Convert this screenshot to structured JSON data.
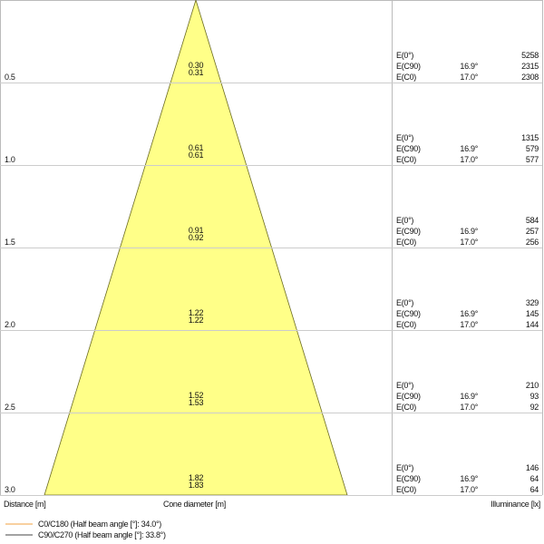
{
  "chart_data": {
    "type": "table",
    "xlabel": "Cone diameter [m]",
    "ylabel": "Distance [m]",
    "right_label": "Illuminance [lx]",
    "colors": {
      "cone_fill": "#ffff88",
      "cone_stroke": "#6b6b20",
      "c0_line": "#f0a040",
      "c90_line": "#444444"
    },
    "rows": [
      {
        "distance": "0.5",
        "diam_c90": "0.30",
        "diam_c0": "0.31",
        "e0": "5258",
        "ec90_angle": "16.9°",
        "ec90": "2315",
        "ec0_angle": "17.0°",
        "ec0": "2308"
      },
      {
        "distance": "1.0",
        "diam_c90": "0.61",
        "diam_c0": "0.61",
        "e0": "1315",
        "ec90_angle": "16.9°",
        "ec90": "579",
        "ec0_angle": "17.0°",
        "ec0": "577"
      },
      {
        "distance": "1.5",
        "diam_c90": "0.91",
        "diam_c0": "0.92",
        "e0": "584",
        "ec90_angle": "16.9°",
        "ec90": "257",
        "ec0_angle": "17.0°",
        "ec0": "256"
      },
      {
        "distance": "2.0",
        "diam_c90": "1.22",
        "diam_c0": "1.22",
        "e0": "329",
        "ec90_angle": "16.9°",
        "ec90": "145",
        "ec0_angle": "17.0°",
        "ec0": "144"
      },
      {
        "distance": "2.5",
        "diam_c90": "1.52",
        "diam_c0": "1.53",
        "e0": "210",
        "ec90_angle": "16.9°",
        "ec90": "93",
        "ec0_angle": "17.0°",
        "ec0": "92"
      },
      {
        "distance": "3.0",
        "diam_c90": "1.82",
        "diam_c0": "1.83",
        "e0": "146",
        "ec90_angle": "16.9°",
        "ec90": "64",
        "ec0_angle": "17.0°",
        "ec0": "64"
      }
    ],
    "labels": {
      "e0": "E(0°)",
      "ec90": "E(C90)",
      "ec0": "E(C0)"
    },
    "legend": [
      {
        "name": "C0/C180 (Half beam angle [°]: 34.0°)"
      },
      {
        "name": "C90/C270 (Half beam angle [°]: 33.8°)"
      }
    ]
  }
}
